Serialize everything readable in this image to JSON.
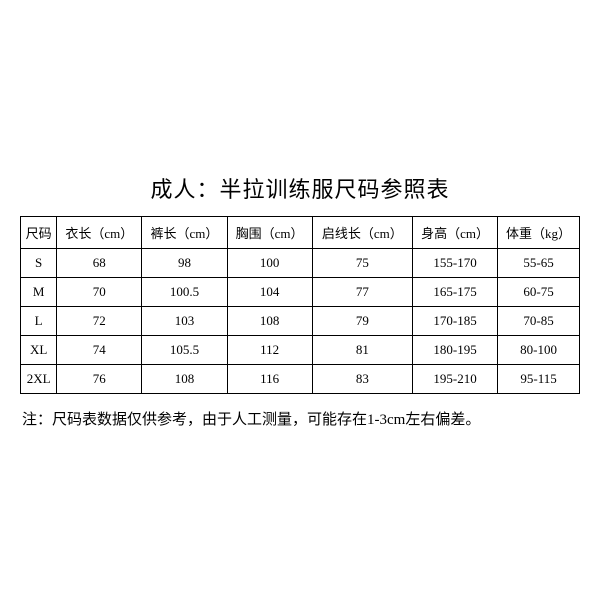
{
  "table": {
    "title": "成人：半拉训练服尺码参照表",
    "columns": [
      "尺码",
      "衣长（cm）",
      "裤长（cm）",
      "胸围（cm）",
      "启线长（cm）",
      "身高（cm）",
      "体重（kg）"
    ],
    "rows": [
      [
        "S",
        "68",
        "98",
        "100",
        "75",
        "155-170",
        "55-65"
      ],
      [
        "M",
        "70",
        "100.5",
        "104",
        "77",
        "165-175",
        "60-75"
      ],
      [
        "L",
        "72",
        "103",
        "108",
        "79",
        "170-185",
        "70-85"
      ],
      [
        "XL",
        "74",
        "105.5",
        "112",
        "81",
        "180-195",
        "80-100"
      ],
      [
        "2XL",
        "76",
        "108",
        "116",
        "83",
        "195-210",
        "95-115"
      ]
    ],
    "note": "注：尺码表数据仅供参考，由于人工测量，可能存在1-3cm左右偏差。",
    "column_widths": [
      "10%",
      "15%",
      "15%",
      "15%",
      "15%",
      "15%",
      "15%"
    ],
    "border_color": "#000000",
    "background_color": "#ffffff",
    "text_color": "#000000",
    "title_fontsize": 22,
    "cell_fontsize": 13,
    "note_fontsize": 15
  }
}
